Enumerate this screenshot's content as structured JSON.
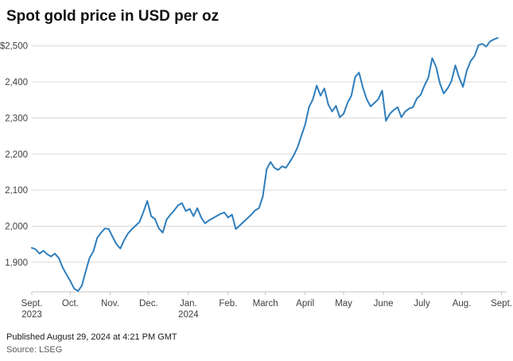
{
  "header": {
    "title": "Spot gold price in USD per oz"
  },
  "footer": {
    "published": "Published August 29, 2024 at 4:21 PM GMT",
    "source": "Source: LSEG"
  },
  "chart_data": {
    "type": "line",
    "title": "Spot gold price in USD per oz",
    "series_name": "Spot gold price (USD per oz)",
    "xlabel": "",
    "ylabel": "USD per oz",
    "grid": true,
    "legend": "none",
    "line_color": "#2f7ebc",
    "grid_color": "#d8d8d8",
    "axis_color": "#c0c0c0",
    "label_color": "#404040",
    "ylim": [
      1818,
      2528
    ],
    "xlim_days": [
      0,
      370
    ],
    "sample_interval_days": 3,
    "x_unit": "days since first tick (Sept. 2023)",
    "y_ticks": [
      {
        "value": 2500,
        "label": "$2,500"
      },
      {
        "value": 2400,
        "label": "2,400"
      },
      {
        "value": 2300,
        "label": "2,300"
      },
      {
        "value": 2200,
        "label": "2,200"
      },
      {
        "value": 2100,
        "label": "2,100"
      },
      {
        "value": 2000,
        "label": "2,000"
      },
      {
        "value": 1900,
        "label": "1,900"
      }
    ],
    "x_ticks": [
      {
        "label": "Sept.",
        "sublabel": "2023",
        "t": 0
      },
      {
        "label": "Oct.",
        "t": 30
      },
      {
        "label": "Nov.",
        "t": 61
      },
      {
        "label": "Dec.",
        "t": 91
      },
      {
        "label": "Jan.",
        "sublabel": "2024",
        "t": 122
      },
      {
        "label": "Feb.",
        "t": 153
      },
      {
        "label": "March",
        "t": 182
      },
      {
        "label": "April",
        "t": 213
      },
      {
        "label": "May",
        "t": 243
      },
      {
        "label": "June",
        "t": 274
      },
      {
        "label": "July",
        "t": 304
      },
      {
        "label": "Aug.",
        "t": 335
      },
      {
        "label": "Sept.",
        "t": 366
      }
    ],
    "values": [
      1940,
      1936,
      1924,
      1932,
      1922,
      1916,
      1924,
      1912,
      1886,
      1866,
      1848,
      1827,
      1820,
      1835,
      1875,
      1912,
      1930,
      1968,
      1982,
      1994,
      1992,
      1970,
      1950,
      1938,
      1962,
      1980,
      1992,
      2002,
      2012,
      2040,
      2070,
      2028,
      2020,
      1994,
      1982,
      2018,
      2032,
      2044,
      2058,
      2064,
      2042,
      2048,
      2028,
      2050,
      2024,
      2008,
      2016,
      2022,
      2028,
      2034,
      2038,
      2024,
      2032,
      1992,
      2002,
      2012,
      2022,
      2032,
      2044,
      2050,
      2082,
      2158,
      2178,
      2162,
      2156,
      2166,
      2162,
      2178,
      2196,
      2218,
      2250,
      2282,
      2330,
      2352,
      2390,
      2362,
      2382,
      2338,
      2318,
      2334,
      2302,
      2312,
      2342,
      2362,
      2414,
      2426,
      2384,
      2352,
      2332,
      2342,
      2352,
      2376,
      2292,
      2312,
      2322,
      2330,
      2302,
      2318,
      2326,
      2330,
      2354,
      2364,
      2390,
      2412,
      2466,
      2442,
      2396,
      2368,
      2382,
      2402,
      2446,
      2412,
      2386,
      2432,
      2458,
      2472,
      2502,
      2506,
      2498,
      2512,
      2518,
      2522
    ]
  }
}
